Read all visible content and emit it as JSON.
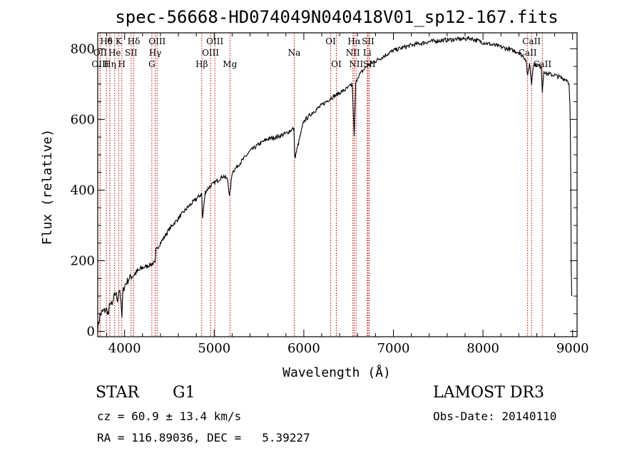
{
  "chart_data": {
    "type": "line",
    "title": "spec-56668-HD074049N040418V01_sp12-167.fits",
    "xlabel": "Wavelength (Å)",
    "ylabel": "Flux (relative)",
    "xlim": [
      3700,
      9050
    ],
    "ylim": [
      -15,
      845
    ],
    "x_ticks": [
      4000,
      5000,
      6000,
      7000,
      8000,
      9000
    ],
    "y_ticks": [
      0,
      200,
      400,
      600,
      800
    ],
    "x_tick_labels": [
      "4000",
      "5000",
      "6000",
      "7000",
      "8000",
      "9000"
    ],
    "y_tick_labels": [
      "0",
      "200",
      "400",
      "600",
      "800"
    ],
    "series": [
      {
        "name": "spectrum",
        "color": "#000000",
        "x": [
          3700,
          3725,
          3750,
          3780,
          3800,
          3820,
          3840,
          3860,
          3880,
          3900,
          3920,
          3940,
          3960,
          3970,
          3980,
          4000,
          4050,
          4100,
          4150,
          4200,
          4250,
          4300,
          4340,
          4350,
          4400,
          4450,
          4500,
          4600,
          4700,
          4800,
          4861,
          4870,
          4900,
          4950,
          5000,
          5050,
          5100,
          5150,
          5172,
          5200,
          5300,
          5400,
          5500,
          5600,
          5700,
          5800,
          5890,
          5900,
          6000,
          6100,
          6200,
          6300,
          6400,
          6500,
          6540,
          6563,
          6580,
          6600,
          6650,
          6700,
          6800,
          6900,
          7000,
          7200,
          7400,
          7600,
          7800,
          7850,
          8000,
          8200,
          8400,
          8480,
          8498,
          8520,
          8542,
          8560,
          8600,
          8650,
          8662,
          8680,
          8700,
          8800,
          8900,
          8940,
          8960,
          8970,
          8975,
          8980,
          8985,
          8990
        ],
        "values": [
          10,
          45,
          55,
          60,
          62,
          48,
          85,
          70,
          95,
          110,
          90,
          120,
          80,
          40,
          110,
          130,
          150,
          160,
          170,
          180,
          185,
          190,
          195,
          230,
          250,
          270,
          290,
          320,
          350,
          375,
          390,
          320,
          395,
          410,
          420,
          430,
          440,
          430,
          380,
          450,
          480,
          510,
          530,
          545,
          550,
          560,
          575,
          490,
          595,
          620,
          640,
          660,
          675,
          690,
          700,
          550,
          700,
          720,
          735,
          750,
          765,
          780,
          795,
          810,
          820,
          825,
          828,
          830,
          818,
          805,
          790,
          770,
          720,
          760,
          700,
          755,
          755,
          748,
          680,
          740,
          730,
          725,
          715,
          712,
          700,
          640,
          560,
          400,
          180,
          100
        ]
      }
    ],
    "lines": [
      {
        "label": "Hδ",
        "x": 3797,
        "row": 0
      },
      {
        "label": "OII",
        "x": 3727,
        "row": 1
      },
      {
        "label": "OIII",
        "x": 3727,
        "row": 2
      },
      {
        "label": "θ",
        "x": 3835,
        "row": 0
      },
      {
        "label": "He",
        "x": 3889,
        "row": 1
      },
      {
        "label": "Hη",
        "x": 3835,
        "row": 2
      },
      {
        "label": "K",
        "x": 3934,
        "row": 0
      },
      {
        "label": "H",
        "x": 3969,
        "row": 2
      },
      {
        "label": "SII",
        "x": 4072,
        "row": 1
      },
      {
        "label": "Hδ",
        "x": 4102,
        "row": 0
      },
      {
        "label": "OIII",
        "x": 4363,
        "row": 0
      },
      {
        "label": "Hγ",
        "x": 4341,
        "row": 1
      },
      {
        "label": "G",
        "x": 4304,
        "row": 2
      },
      {
        "label": "Hβ",
        "x": 4861,
        "row": 2
      },
      {
        "label": "OIII",
        "x": 4959,
        "row": 1
      },
      {
        "label": "OIII",
        "x": 5007,
        "row": 0
      },
      {
        "label": "Mg",
        "x": 5175,
        "row": 2
      },
      {
        "label": "Na",
        "x": 5893,
        "row": 1
      },
      {
        "label": "OI",
        "x": 6300,
        "row": 0
      },
      {
        "label": "OI",
        "x": 6363,
        "row": 2
      },
      {
        "label": "Hα",
        "x": 6563,
        "row": 0
      },
      {
        "label": "NII",
        "x": 6548,
        "row": 1
      },
      {
        "label": "NII",
        "x": 6584,
        "row": 2
      },
      {
        "label": "SII",
        "x": 6717,
        "row": 0
      },
      {
        "label": "Li",
        "x": 6708,
        "row": 1
      },
      {
        "label": "SII",
        "x": 6731,
        "row": 2
      },
      {
        "label": "CaII",
        "x": 8542,
        "row": 0
      },
      {
        "label": "CaII",
        "x": 8498,
        "row": 1
      },
      {
        "label": "CaII",
        "x": 8662,
        "row": 2
      }
    ],
    "line_color": "#c00000",
    "annotations": {
      "object_class": "STAR",
      "subclass": "G1",
      "survey": "LAMOST DR3",
      "cz": "cz = 60.9 ± 13.4 km/s",
      "obs_date": "Obs-Date: 20140110",
      "coords": "RA = 116.89036, DEC =   5.39227"
    }
  }
}
